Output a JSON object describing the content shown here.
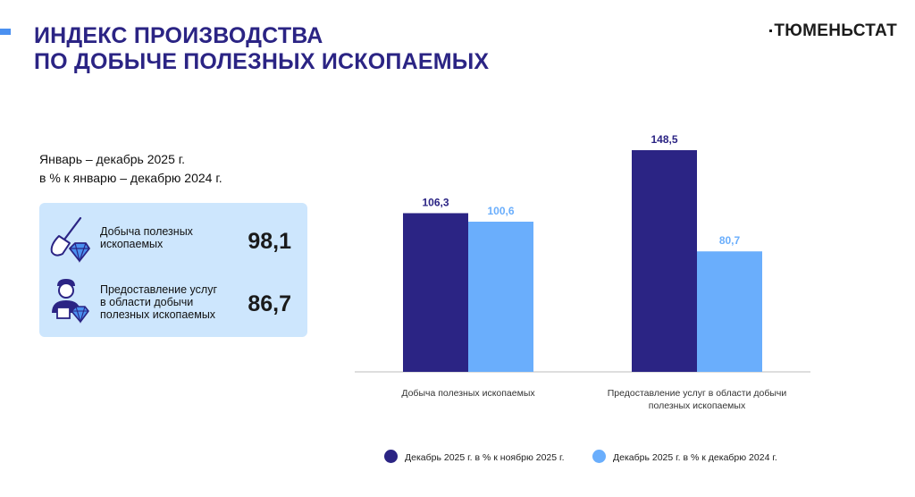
{
  "header": {
    "title_line1": "ИНДЕКС ПРОИЗВОДСТВА",
    "title_line2": "ПО ДОБЫЧЕ ПОЛЕЗНЫХ ИСКОПАЕМЫХ",
    "brand": "ТЮМЕНЬСТАТ"
  },
  "summary": {
    "period_line1": "Январь – декабрь 2025 г.",
    "period_line2": "в % к январю – декабрю 2024 г.",
    "items": [
      {
        "label_lines": [
          "Добыча полезных",
          "ископаемых"
        ],
        "value": "98,1",
        "icon": "shovel-diamond-icon"
      },
      {
        "label_lines": [
          "Предоставление услуг",
          "в области добычи",
          "полезных ископаемых"
        ],
        "value": "86,7",
        "icon": "worker-diamond-icon"
      }
    ]
  },
  "colors": {
    "title": "#2b2484",
    "series_1": "#2b2484",
    "series_2": "#6aaefc",
    "panel_bg": "#cde6fd",
    "accent": "#4a90f0"
  },
  "chart_data": {
    "type": "bar",
    "title": "",
    "xlabel": "",
    "ylabel": "",
    "ylim": [
      0,
      160
    ],
    "grid": false,
    "legend_position": "bottom",
    "categories": [
      [
        "Добыча полезных ископаемых"
      ],
      [
        "Предоставление услуг в области добычи",
        "полезных ископаемых"
      ]
    ],
    "series": [
      {
        "name": "Декабрь 2025 г. в % к ноябрю 2025 г.",
        "values": [
          106.3,
          148.5
        ],
        "labels": [
          "106,3",
          "148,5"
        ],
        "color": "#2b2484"
      },
      {
        "name": "Декабрь 2025 г. в % к декабрю 2024 г.",
        "values": [
          100.6,
          80.7
        ],
        "labels": [
          "100,6",
          "80,7"
        ],
        "color": "#6aaefc"
      }
    ]
  }
}
